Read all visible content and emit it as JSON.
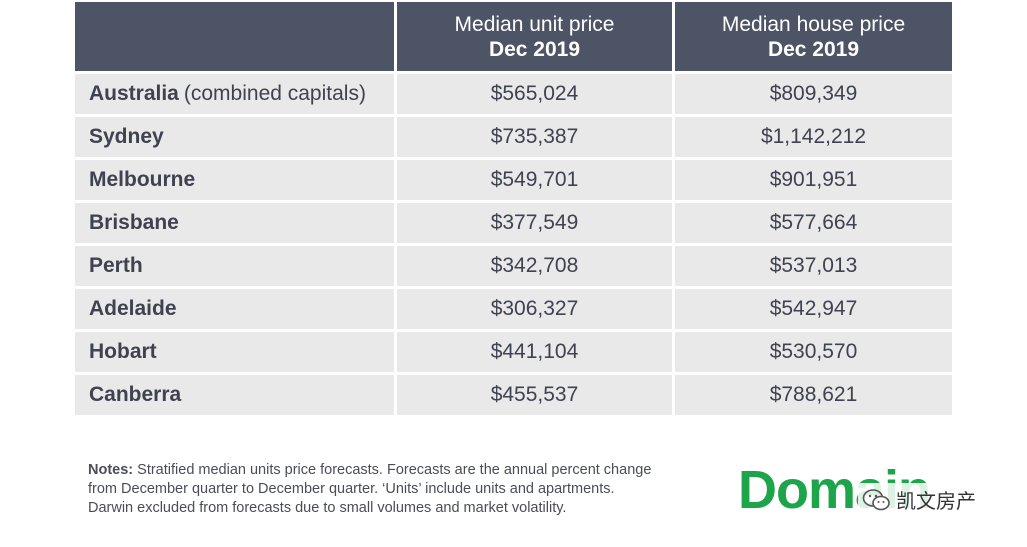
{
  "chart_data": {
    "type": "table",
    "columns": [
      {
        "line1": "",
        "line2": ""
      },
      {
        "line1": "Median unit price",
        "line2": "Dec 2019"
      },
      {
        "line1": "Median house price",
        "line2": "Dec 2019"
      }
    ],
    "rows": [
      {
        "city": "Australia",
        "suffix": "(combined capitals)",
        "unit": "$565,024",
        "house": "$809,349"
      },
      {
        "city": "Sydney",
        "suffix": "",
        "unit": "$735,387",
        "house": "$1,142,212"
      },
      {
        "city": "Melbourne",
        "suffix": "",
        "unit": "$549,701",
        "house": "$901,951"
      },
      {
        "city": "Brisbane",
        "suffix": "",
        "unit": "$377,549",
        "house": "$577,664"
      },
      {
        "city": "Perth",
        "suffix": "",
        "unit": "$342,708",
        "house": "$537,013"
      },
      {
        "city": "Adelaide",
        "suffix": "",
        "unit": "$306,327",
        "house": "$542,947"
      },
      {
        "city": "Hobart",
        "suffix": "",
        "unit": "$441,104",
        "house": "$530,570"
      },
      {
        "city": "Canberra",
        "suffix": "",
        "unit": "$455,537",
        "house": "$788,621"
      }
    ]
  },
  "notes": {
    "label": "Notes:",
    "lines": [
      "Stratified median units price forecasts. Forecasts are the annual percent change",
      "from December quarter to December quarter. ‘Units’ include units and apartments.",
      "Darwin excluded from forecasts due to small volumes and market volatility."
    ]
  },
  "logo": {
    "text": "Domain",
    "color": "#1ea44a"
  },
  "watermark": {
    "text": "凯文房产",
    "icon": "wechat-icon"
  },
  "colors": {
    "header_bg": "#4d5466",
    "row_bg": "#e9e9ea",
    "text": "#3f4350"
  }
}
